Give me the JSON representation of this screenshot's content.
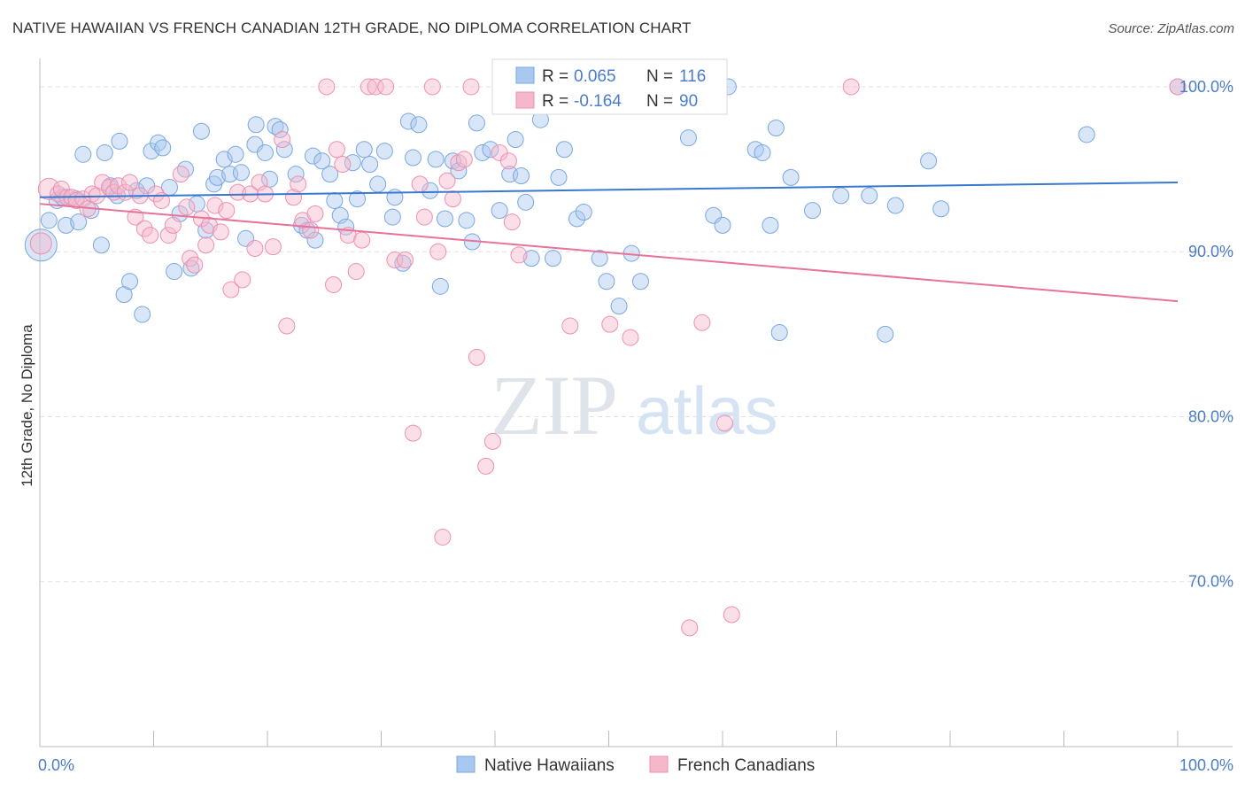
{
  "header": {
    "title": "NATIVE HAWAIIAN VS FRENCH CANADIAN 12TH GRADE, NO DIPLOMA CORRELATION CHART",
    "source": "Source: ZipAtlas.com"
  },
  "watermark": {
    "zip": "ZIP",
    "atlas": "atlas"
  },
  "legend": {
    "rows": [
      {
        "r_label": "R =",
        "r_value": "0.065",
        "n_label": "N =",
        "n_value": "116",
        "color": "#a9c8f0"
      },
      {
        "r_label": "R =",
        "r_value": "-0.164",
        "n_label": "N =",
        "n_value": "90",
        "color": "#f5b8cb"
      }
    ]
  },
  "chart_data": {
    "type": "scatter",
    "title": "NATIVE HAWAIIAN VS FRENCH CANADIAN 12TH GRADE, NO DIPLOMA CORRELATION CHART",
    "xlabel": "",
    "ylabel": "12th Grade, No Diploma",
    "xlim": [
      0,
      100
    ],
    "ylim": [
      60,
      101.5
    ],
    "x_tick_labels": [
      "0.0%",
      "100.0%"
    ],
    "y_ticks": [
      70,
      80,
      90,
      100
    ],
    "y_tick_labels": [
      "70.0%",
      "80.0%",
      "90.0%",
      "100.0%"
    ],
    "grid": true,
    "legend_position": "top-center",
    "series": [
      {
        "name": "Native Hawaiians",
        "color": "#7aa7e0",
        "fill": "#a9c8f0",
        "trend": {
          "x": [
            0,
            100
          ],
          "y": [
            93.3,
            94.2
          ],
          "color": "#3a78d0"
        },
        "points": [
          [
            0.1,
            90.4,
            18
          ],
          [
            0.8,
            91.9,
            9
          ],
          [
            1.5,
            93.1,
            9
          ],
          [
            2.0,
            93.3,
            9
          ],
          [
            2.3,
            91.6,
            9
          ],
          [
            3.2,
            93.2,
            9
          ],
          [
            3.4,
            91.8,
            9
          ],
          [
            3.8,
            95.9,
            9
          ],
          [
            4.5,
            92.5,
            9
          ],
          [
            5.4,
            90.4,
            9
          ],
          [
            5.7,
            96.0,
            9
          ],
          [
            6.2,
            94.0,
            9
          ],
          [
            6.8,
            93.4,
            9
          ],
          [
            7.0,
            96.7,
            9
          ],
          [
            7.4,
            87.4,
            9
          ],
          [
            7.9,
            88.2,
            9
          ],
          [
            8.5,
            93.7,
            9
          ],
          [
            9.0,
            86.2,
            9
          ],
          [
            9.4,
            94.0,
            9
          ],
          [
            9.8,
            96.1,
            9
          ],
          [
            10.4,
            96.6,
            9
          ],
          [
            10.8,
            96.3,
            9
          ],
          [
            11.4,
            93.9,
            9
          ],
          [
            11.8,
            88.8,
            9
          ],
          [
            12.3,
            92.3,
            9
          ],
          [
            12.8,
            95.0,
            9
          ],
          [
            13.3,
            89.0,
            9
          ],
          [
            13.8,
            92.9,
            9
          ],
          [
            14.2,
            97.3,
            9
          ],
          [
            14.6,
            91.3,
            9
          ],
          [
            15.3,
            94.1,
            9
          ],
          [
            15.6,
            94.5,
            9
          ],
          [
            16.2,
            95.6,
            9
          ],
          [
            16.7,
            94.7,
            9
          ],
          [
            17.2,
            95.9,
            9
          ],
          [
            17.7,
            94.8,
            9
          ],
          [
            18.1,
            90.8,
            9
          ],
          [
            18.9,
            96.5,
            9
          ],
          [
            19.0,
            97.7,
            9
          ],
          [
            19.8,
            96.0,
            9
          ],
          [
            20.2,
            94.4,
            9
          ],
          [
            20.7,
            97.6,
            9
          ],
          [
            21.1,
            97.4,
            9
          ],
          [
            21.5,
            96.2,
            9
          ],
          [
            22.5,
            94.7,
            9
          ],
          [
            23.0,
            91.6,
            9
          ],
          [
            23.5,
            91.3,
            9
          ],
          [
            24.0,
            95.8,
            9
          ],
          [
            24.2,
            90.7,
            9
          ],
          [
            24.8,
            95.5,
            9
          ],
          [
            25.5,
            94.7,
            9
          ],
          [
            25.9,
            93.1,
            9
          ],
          [
            26.4,
            92.2,
            9
          ],
          [
            26.9,
            91.5,
            9
          ],
          [
            27.5,
            95.4,
            9
          ],
          [
            27.9,
            93.2,
            9
          ],
          [
            28.5,
            96.2,
            9
          ],
          [
            29.0,
            95.3,
            9
          ],
          [
            29.7,
            94.1,
            9
          ],
          [
            30.3,
            96.1,
            9
          ],
          [
            31.0,
            92.1,
            9
          ],
          [
            31.2,
            93.3,
            9
          ],
          [
            31.9,
            89.3,
            9
          ],
          [
            32.4,
            97.9,
            9
          ],
          [
            32.8,
            95.7,
            9
          ],
          [
            33.3,
            97.7,
            9
          ],
          [
            34.3,
            93.7,
            9
          ],
          [
            34.8,
            95.6,
            9
          ],
          [
            35.2,
            87.9,
            9
          ],
          [
            35.6,
            92.0,
            9
          ],
          [
            36.3,
            95.5,
            9
          ],
          [
            36.8,
            94.9,
            9
          ],
          [
            37.5,
            91.9,
            9
          ],
          [
            38.0,
            90.6,
            9
          ],
          [
            38.4,
            97.8,
            9
          ],
          [
            38.9,
            96.0,
            9
          ],
          [
            39.6,
            96.2,
            9
          ],
          [
            40.4,
            92.5,
            9
          ],
          [
            41.3,
            94.7,
            9
          ],
          [
            41.8,
            96.8,
            9
          ],
          [
            42.3,
            94.6,
            9
          ],
          [
            42.7,
            93.0,
            9
          ],
          [
            43.2,
            89.6,
            9
          ],
          [
            44.0,
            98.0,
            9
          ],
          [
            45.1,
            89.6,
            9
          ],
          [
            45.6,
            94.5,
            9
          ],
          [
            46.1,
            96.2,
            9
          ],
          [
            47.2,
            92.0,
            9
          ],
          [
            47.8,
            92.4,
            9
          ],
          [
            49.2,
            89.6,
            9
          ],
          [
            49.8,
            88.2,
            9
          ],
          [
            50.9,
            86.7,
            9
          ],
          [
            52.0,
            89.9,
            9
          ],
          [
            52.8,
            88.2,
            9
          ],
          [
            57.0,
            96.9,
            9
          ],
          [
            59.2,
            92.2,
            9
          ],
          [
            60.0,
            91.6,
            9
          ],
          [
            60.5,
            100.0,
            9
          ],
          [
            62.9,
            96.2,
            9
          ],
          [
            63.5,
            96.0,
            9
          ],
          [
            64.2,
            91.6,
            9
          ],
          [
            64.7,
            97.5,
            9
          ],
          [
            65.0,
            85.1,
            9
          ],
          [
            66.0,
            94.5,
            9
          ],
          [
            67.9,
            92.5,
            9
          ],
          [
            70.4,
            93.4,
            9
          ],
          [
            72.9,
            93.4,
            9
          ],
          [
            74.3,
            85.0,
            9
          ],
          [
            75.2,
            92.8,
            9
          ],
          [
            78.1,
            95.5,
            9
          ],
          [
            79.2,
            92.6,
            9
          ],
          [
            92.0,
            97.1,
            9
          ],
          [
            100.0,
            100.0,
            9
          ]
        ]
      },
      {
        "name": "French Canadians",
        "color": "#f08fae",
        "fill": "#f5b8cb",
        "trend": {
          "x": [
            0,
            100
          ],
          "y": [
            92.9,
            87.0
          ],
          "color": "#e8729a"
        },
        "points": [
          [
            0.1,
            90.5,
            12
          ],
          [
            0.8,
            93.8,
            12
          ],
          [
            1.6,
            93.5,
            9
          ],
          [
            1.9,
            93.8,
            9
          ],
          [
            2.4,
            93.3,
            9
          ],
          [
            2.8,
            93.3,
            9
          ],
          [
            3.2,
            93.1,
            9
          ],
          [
            3.8,
            93.2,
            9
          ],
          [
            4.2,
            92.6,
            9
          ],
          [
            4.6,
            93.5,
            9
          ],
          [
            5.0,
            93.4,
            9
          ],
          [
            5.5,
            94.2,
            9
          ],
          [
            6.1,
            93.9,
            9
          ],
          [
            6.5,
            93.6,
            9
          ],
          [
            6.9,
            94.0,
            9
          ],
          [
            7.5,
            93.6,
            9
          ],
          [
            7.9,
            94.2,
            9
          ],
          [
            8.4,
            92.1,
            9
          ],
          [
            8.8,
            93.4,
            9
          ],
          [
            9.2,
            91.4,
            9
          ],
          [
            9.7,
            91.0,
            9
          ],
          [
            10.2,
            93.5,
            9
          ],
          [
            10.7,
            93.1,
            9
          ],
          [
            11.3,
            91.0,
            9
          ],
          [
            11.7,
            91.6,
            9
          ],
          [
            12.4,
            94.7,
            9
          ],
          [
            12.9,
            92.7,
            9
          ],
          [
            13.2,
            89.6,
            9
          ],
          [
            13.6,
            89.2,
            9
          ],
          [
            14.2,
            92.0,
            9
          ],
          [
            14.6,
            90.4,
            9
          ],
          [
            14.9,
            91.6,
            9
          ],
          [
            15.4,
            92.8,
            9
          ],
          [
            15.9,
            91.2,
            9
          ],
          [
            16.4,
            92.5,
            9
          ],
          [
            16.8,
            87.7,
            9
          ],
          [
            17.4,
            93.6,
            9
          ],
          [
            17.8,
            88.3,
            9
          ],
          [
            18.5,
            93.5,
            9
          ],
          [
            18.9,
            90.2,
            9
          ],
          [
            19.3,
            94.2,
            9
          ],
          [
            19.8,
            93.5,
            9
          ],
          [
            20.5,
            90.3,
            9
          ],
          [
            21.3,
            96.8,
            9
          ],
          [
            21.7,
            85.5,
            9
          ],
          [
            22.3,
            93.3,
            9
          ],
          [
            22.7,
            94.1,
            9
          ],
          [
            23.1,
            91.9,
            9
          ],
          [
            23.8,
            91.3,
            9
          ],
          [
            24.2,
            92.3,
            9
          ],
          [
            25.2,
            100.0,
            9
          ],
          [
            25.8,
            88.0,
            9
          ],
          [
            26.1,
            96.2,
            9
          ],
          [
            26.6,
            95.3,
            9
          ],
          [
            27.1,
            91.0,
            9
          ],
          [
            27.8,
            88.8,
            9
          ],
          [
            28.3,
            90.7,
            9
          ],
          [
            28.9,
            100.0,
            9
          ],
          [
            29.5,
            100.0,
            9
          ],
          [
            30.4,
            100.0,
            9
          ],
          [
            31.2,
            89.5,
            9
          ],
          [
            32.1,
            89.5,
            9
          ],
          [
            32.8,
            79.0,
            9
          ],
          [
            33.4,
            94.1,
            9
          ],
          [
            33.8,
            92.1,
            9
          ],
          [
            34.5,
            100.0,
            9
          ],
          [
            35.0,
            90.0,
            9
          ],
          [
            35.4,
            72.7,
            9
          ],
          [
            35.8,
            94.3,
            9
          ],
          [
            36.3,
            93.2,
            9
          ],
          [
            36.8,
            95.4,
            9
          ],
          [
            37.3,
            95.6,
            9
          ],
          [
            37.9,
            100.0,
            9
          ],
          [
            38.4,
            83.6,
            9
          ],
          [
            39.2,
            77.0,
            9
          ],
          [
            39.8,
            78.5,
            9
          ],
          [
            40.4,
            96.0,
            9
          ],
          [
            41.2,
            95.5,
            9
          ],
          [
            41.5,
            91.8,
            9
          ],
          [
            42.1,
            89.8,
            9
          ],
          [
            46.6,
            85.5,
            9
          ],
          [
            47.8,
            100.0,
            9
          ],
          [
            50.1,
            85.6,
            9
          ],
          [
            51.9,
            84.8,
            9
          ],
          [
            57.1,
            67.2,
            9
          ],
          [
            58.2,
            85.7,
            9
          ],
          [
            60.2,
            79.6,
            9
          ],
          [
            60.8,
            68.0,
            9
          ],
          [
            71.3,
            100.0,
            9
          ],
          [
            100.0,
            100.0,
            9
          ]
        ]
      }
    ]
  },
  "bottom_legend": [
    {
      "label": "Native Hawaiians",
      "color": "#a9c8f0"
    },
    {
      "label": "French Canadians",
      "color": "#f5b8cb"
    }
  ]
}
